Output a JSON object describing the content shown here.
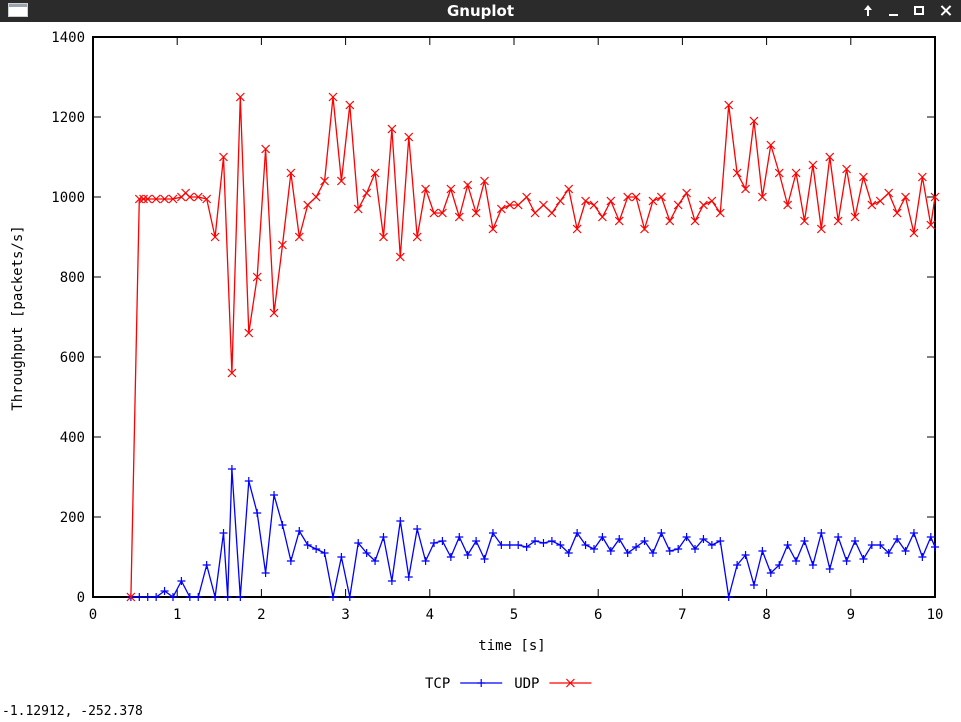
{
  "window": {
    "title": "Gnuplot",
    "controls": {
      "up": "up-arrow-icon",
      "minimize": "minimize-icon",
      "maximize": "maximize-icon",
      "close": "close-icon"
    }
  },
  "status": {
    "coords": "-1.12912, -252.378"
  },
  "colors": {
    "tcp": "#0000ff",
    "udp": "#ff0000",
    "titlebar": "#2b2b2b"
  },
  "chart_data": {
    "type": "line",
    "xlabel": "time [s]",
    "ylabel": "Throughput [packets/s]",
    "xlim": [
      0,
      10
    ],
    "ylim": [
      0,
      1400
    ],
    "xticks": [
      "0",
      "1",
      "2",
      "3",
      "4",
      "5",
      "6",
      "7",
      "8",
      "9",
      "10"
    ],
    "yticks": [
      "0",
      "200",
      "400",
      "600",
      "800",
      "1000",
      "1200",
      "1400"
    ],
    "grid": false,
    "legend": "bottom-center",
    "series": [
      {
        "name": "TCP",
        "color": "#0000ff",
        "marker": "plus",
        "points": [
          [
            0.45,
            0
          ],
          [
            0.55,
            0
          ],
          [
            0.65,
            0
          ],
          [
            0.75,
            0
          ],
          [
            0.85,
            15
          ],
          [
            0.95,
            0
          ],
          [
            1.05,
            40
          ],
          [
            1.15,
            0
          ],
          [
            1.25,
            0
          ],
          [
            1.35,
            80
          ],
          [
            1.45,
            0
          ],
          [
            1.55,
            160
          ],
          [
            1.6,
            0
          ],
          [
            1.65,
            320
          ],
          [
            1.75,
            0
          ],
          [
            1.85,
            290
          ],
          [
            1.95,
            210
          ],
          [
            2.05,
            60
          ],
          [
            2.15,
            255
          ],
          [
            2.25,
            180
          ],
          [
            2.35,
            90
          ],
          [
            2.45,
            165
          ],
          [
            2.55,
            130
          ],
          [
            2.65,
            120
          ],
          [
            2.75,
            110
          ],
          [
            2.85,
            0
          ],
          [
            2.95,
            100
          ],
          [
            3.05,
            0
          ],
          [
            3.15,
            135
          ],
          [
            3.25,
            110
          ],
          [
            3.35,
            90
          ],
          [
            3.45,
            150
          ],
          [
            3.55,
            40
          ],
          [
            3.65,
            190
          ],
          [
            3.75,
            50
          ],
          [
            3.85,
            170
          ],
          [
            3.95,
            90
          ],
          [
            4.05,
            135
          ],
          [
            4.15,
            140
          ],
          [
            4.25,
            100
          ],
          [
            4.35,
            150
          ],
          [
            4.45,
            105
          ],
          [
            4.55,
            140
          ],
          [
            4.65,
            95
          ],
          [
            4.75,
            160
          ],
          [
            4.85,
            130
          ],
          [
            4.95,
            130
          ],
          [
            5.05,
            130
          ],
          [
            5.15,
            125
          ],
          [
            5.25,
            140
          ],
          [
            5.35,
            135
          ],
          [
            5.45,
            140
          ],
          [
            5.55,
            130
          ],
          [
            5.65,
            110
          ],
          [
            5.75,
            160
          ],
          [
            5.85,
            130
          ],
          [
            5.95,
            120
          ],
          [
            6.05,
            150
          ],
          [
            6.15,
            115
          ],
          [
            6.25,
            145
          ],
          [
            6.35,
            110
          ],
          [
            6.45,
            125
          ],
          [
            6.55,
            140
          ],
          [
            6.65,
            110
          ],
          [
            6.75,
            160
          ],
          [
            6.85,
            115
          ],
          [
            6.95,
            120
          ],
          [
            7.05,
            150
          ],
          [
            7.15,
            120
          ],
          [
            7.25,
            145
          ],
          [
            7.35,
            130
          ],
          [
            7.45,
            140
          ],
          [
            7.55,
            0
          ],
          [
            7.65,
            80
          ],
          [
            7.75,
            105
          ],
          [
            7.85,
            30
          ],
          [
            7.95,
            115
          ],
          [
            8.05,
            60
          ],
          [
            8.15,
            80
          ],
          [
            8.25,
            130
          ],
          [
            8.35,
            90
          ],
          [
            8.45,
            140
          ],
          [
            8.55,
            80
          ],
          [
            8.65,
            160
          ],
          [
            8.75,
            70
          ],
          [
            8.85,
            150
          ],
          [
            8.95,
            90
          ],
          [
            9.05,
            140
          ],
          [
            9.15,
            95
          ],
          [
            9.25,
            130
          ],
          [
            9.35,
            130
          ],
          [
            9.45,
            110
          ],
          [
            9.55,
            145
          ],
          [
            9.65,
            115
          ],
          [
            9.75,
            160
          ],
          [
            9.85,
            100
          ],
          [
            9.95,
            150
          ],
          [
            10.0,
            125
          ]
        ]
      },
      {
        "name": "UDP",
        "color": "#ff0000",
        "marker": "cross",
        "points": [
          [
            0.45,
            0
          ],
          [
            0.55,
            995
          ],
          [
            0.6,
            995
          ],
          [
            0.65,
            995
          ],
          [
            0.75,
            995
          ],
          [
            0.85,
            995
          ],
          [
            0.95,
            995
          ],
          [
            1.05,
            1000
          ],
          [
            1.1,
            1010
          ],
          [
            1.15,
            1000
          ],
          [
            1.25,
            1000
          ],
          [
            1.35,
            995
          ],
          [
            1.45,
            900
          ],
          [
            1.55,
            1100
          ],
          [
            1.65,
            560
          ],
          [
            1.75,
            1250
          ],
          [
            1.85,
            660
          ],
          [
            1.95,
            800
          ],
          [
            2.05,
            1120
          ],
          [
            2.15,
            710
          ],
          [
            2.25,
            880
          ],
          [
            2.35,
            1060
          ],
          [
            2.45,
            900
          ],
          [
            2.55,
            980
          ],
          [
            2.65,
            1000
          ],
          [
            2.75,
            1040
          ],
          [
            2.85,
            1250
          ],
          [
            2.95,
            1040
          ],
          [
            3.05,
            1230
          ],
          [
            3.15,
            970
          ],
          [
            3.25,
            1010
          ],
          [
            3.35,
            1060
          ],
          [
            3.45,
            900
          ],
          [
            3.55,
            1170
          ],
          [
            3.65,
            850
          ],
          [
            3.75,
            1150
          ],
          [
            3.85,
            900
          ],
          [
            3.95,
            1020
          ],
          [
            4.05,
            960
          ],
          [
            4.15,
            960
          ],
          [
            4.25,
            1020
          ],
          [
            4.35,
            950
          ],
          [
            4.45,
            1030
          ],
          [
            4.55,
            960
          ],
          [
            4.65,
            1040
          ],
          [
            4.75,
            920
          ],
          [
            4.85,
            970
          ],
          [
            4.95,
            980
          ],
          [
            5.05,
            980
          ],
          [
            5.15,
            1000
          ],
          [
            5.25,
            960
          ],
          [
            5.35,
            980
          ],
          [
            5.45,
            960
          ],
          [
            5.55,
            990
          ],
          [
            5.65,
            1020
          ],
          [
            5.75,
            920
          ],
          [
            5.85,
            990
          ],
          [
            5.95,
            980
          ],
          [
            6.05,
            950
          ],
          [
            6.15,
            990
          ],
          [
            6.25,
            940
          ],
          [
            6.35,
            1000
          ],
          [
            6.45,
            1000
          ],
          [
            6.55,
            920
          ],
          [
            6.65,
            990
          ],
          [
            6.75,
            1000
          ],
          [
            6.85,
            940
          ],
          [
            6.95,
            980
          ],
          [
            7.05,
            1010
          ],
          [
            7.15,
            940
          ],
          [
            7.25,
            980
          ],
          [
            7.35,
            990
          ],
          [
            7.45,
            960
          ],
          [
            7.55,
            1230
          ],
          [
            7.65,
            1060
          ],
          [
            7.75,
            1020
          ],
          [
            7.85,
            1190
          ],
          [
            7.95,
            1000
          ],
          [
            8.05,
            1130
          ],
          [
            8.15,
            1060
          ],
          [
            8.25,
            980
          ],
          [
            8.35,
            1060
          ],
          [
            8.45,
            940
          ],
          [
            8.55,
            1080
          ],
          [
            8.65,
            920
          ],
          [
            8.75,
            1100
          ],
          [
            8.85,
            940
          ],
          [
            8.95,
            1070
          ],
          [
            9.05,
            950
          ],
          [
            9.15,
            1050
          ],
          [
            9.25,
            980
          ],
          [
            9.35,
            990
          ],
          [
            9.45,
            1010
          ],
          [
            9.55,
            960
          ],
          [
            9.65,
            1000
          ],
          [
            9.75,
            910
          ],
          [
            9.85,
            1050
          ],
          [
            9.95,
            930
          ],
          [
            10.0,
            1000
          ]
        ]
      }
    ]
  }
}
